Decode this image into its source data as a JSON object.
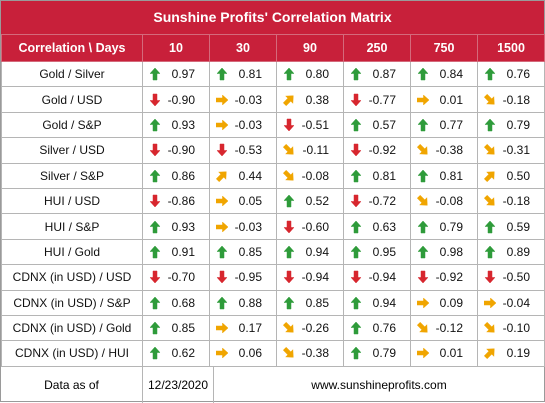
{
  "title": "Sunshine Profits' Correlation Matrix",
  "header": {
    "corner": "Correlation \\ Days",
    "columns": [
      "10",
      "30",
      "90",
      "250",
      "750",
      "1500"
    ]
  },
  "rows": [
    {
      "label": "Gold / Silver",
      "cells": [
        {
          "value": "0.97",
          "trend": "up"
        },
        {
          "value": "0.81",
          "trend": "up"
        },
        {
          "value": "0.80",
          "trend": "up"
        },
        {
          "value": "0.87",
          "trend": "up"
        },
        {
          "value": "0.84",
          "trend": "up"
        },
        {
          "value": "0.76",
          "trend": "up"
        }
      ]
    },
    {
      "label": "Gold / USD",
      "cells": [
        {
          "value": "-0.90",
          "trend": "down"
        },
        {
          "value": "-0.03",
          "trend": "flat"
        },
        {
          "value": "0.38",
          "trend": "up-right"
        },
        {
          "value": "-0.77",
          "trend": "down"
        },
        {
          "value": "0.01",
          "trend": "flat"
        },
        {
          "value": "-0.18",
          "trend": "down-right"
        }
      ]
    },
    {
      "label": "Gold / S&P",
      "cells": [
        {
          "value": "0.93",
          "trend": "up"
        },
        {
          "value": "-0.03",
          "trend": "flat"
        },
        {
          "value": "-0.51",
          "trend": "down"
        },
        {
          "value": "0.57",
          "trend": "up"
        },
        {
          "value": "0.77",
          "trend": "up"
        },
        {
          "value": "0.79",
          "trend": "up"
        }
      ]
    },
    {
      "label": "Silver / USD",
      "cells": [
        {
          "value": "-0.90",
          "trend": "down"
        },
        {
          "value": "-0.53",
          "trend": "down"
        },
        {
          "value": "-0.11",
          "trend": "down-right"
        },
        {
          "value": "-0.92",
          "trend": "down"
        },
        {
          "value": "-0.38",
          "trend": "down-right"
        },
        {
          "value": "-0.31",
          "trend": "down-right"
        }
      ]
    },
    {
      "label": "Silver / S&P",
      "cells": [
        {
          "value": "0.86",
          "trend": "up"
        },
        {
          "value": "0.44",
          "trend": "up-right"
        },
        {
          "value": "-0.08",
          "trend": "down-right"
        },
        {
          "value": "0.81",
          "trend": "up"
        },
        {
          "value": "0.81",
          "trend": "up"
        },
        {
          "value": "0.50",
          "trend": "up-right"
        }
      ]
    },
    {
      "label": "HUI / USD",
      "cells": [
        {
          "value": "-0.86",
          "trend": "down"
        },
        {
          "value": "0.05",
          "trend": "flat"
        },
        {
          "value": "0.52",
          "trend": "up"
        },
        {
          "value": "-0.72",
          "trend": "down"
        },
        {
          "value": "-0.08",
          "trend": "down-right"
        },
        {
          "value": "-0.18",
          "trend": "down-right"
        }
      ]
    },
    {
      "label": "HUI / S&P",
      "cells": [
        {
          "value": "0.93",
          "trend": "up"
        },
        {
          "value": "-0.03",
          "trend": "flat"
        },
        {
          "value": "-0.60",
          "trend": "down"
        },
        {
          "value": "0.63",
          "trend": "up"
        },
        {
          "value": "0.79",
          "trend": "up"
        },
        {
          "value": "0.59",
          "trend": "up"
        }
      ]
    },
    {
      "label": "HUI / Gold",
      "cells": [
        {
          "value": "0.91",
          "trend": "up"
        },
        {
          "value": "0.85",
          "trend": "up"
        },
        {
          "value": "0.94",
          "trend": "up"
        },
        {
          "value": "0.95",
          "trend": "up"
        },
        {
          "value": "0.98",
          "trend": "up"
        },
        {
          "value": "0.89",
          "trend": "up"
        }
      ]
    },
    {
      "label": "CDNX (in USD) / USD",
      "cells": [
        {
          "value": "-0.70",
          "trend": "down"
        },
        {
          "value": "-0.95",
          "trend": "down"
        },
        {
          "value": "-0.94",
          "trend": "down"
        },
        {
          "value": "-0.94",
          "trend": "down"
        },
        {
          "value": "-0.92",
          "trend": "down"
        },
        {
          "value": "-0.50",
          "trend": "down"
        }
      ]
    },
    {
      "label": "CDNX (in USD) / S&P",
      "cells": [
        {
          "value": "0.68",
          "trend": "up"
        },
        {
          "value": "0.88",
          "trend": "up"
        },
        {
          "value": "0.85",
          "trend": "up"
        },
        {
          "value": "0.94",
          "trend": "up"
        },
        {
          "value": "0.09",
          "trend": "flat"
        },
        {
          "value": "-0.04",
          "trend": "flat"
        }
      ]
    },
    {
      "label": "CDNX (in USD) / Gold",
      "cells": [
        {
          "value": "0.85",
          "trend": "up"
        },
        {
          "value": "0.17",
          "trend": "flat"
        },
        {
          "value": "-0.26",
          "trend": "down-right"
        },
        {
          "value": "0.76",
          "trend": "up"
        },
        {
          "value": "-0.12",
          "trend": "down-right"
        },
        {
          "value": "-0.10",
          "trend": "down-right"
        }
      ]
    },
    {
      "label": "CDNX (in USD) / HUI",
      "cells": [
        {
          "value": "0.62",
          "trend": "up"
        },
        {
          "value": "0.06",
          "trend": "flat"
        },
        {
          "value": "-0.38",
          "trend": "down-right"
        },
        {
          "value": "0.79",
          "trend": "up"
        },
        {
          "value": "0.01",
          "trend": "flat"
        },
        {
          "value": "0.19",
          "trend": "up-right"
        }
      ]
    }
  ],
  "footer": {
    "label": "Data as of",
    "date": "12/23/2020",
    "website": "www.sunshineprofits.com"
  },
  "colors": {
    "header_bg": "#c8203a",
    "up": "#2e9b3a",
    "down": "#d7262e",
    "neutral": "#f0a500"
  }
}
